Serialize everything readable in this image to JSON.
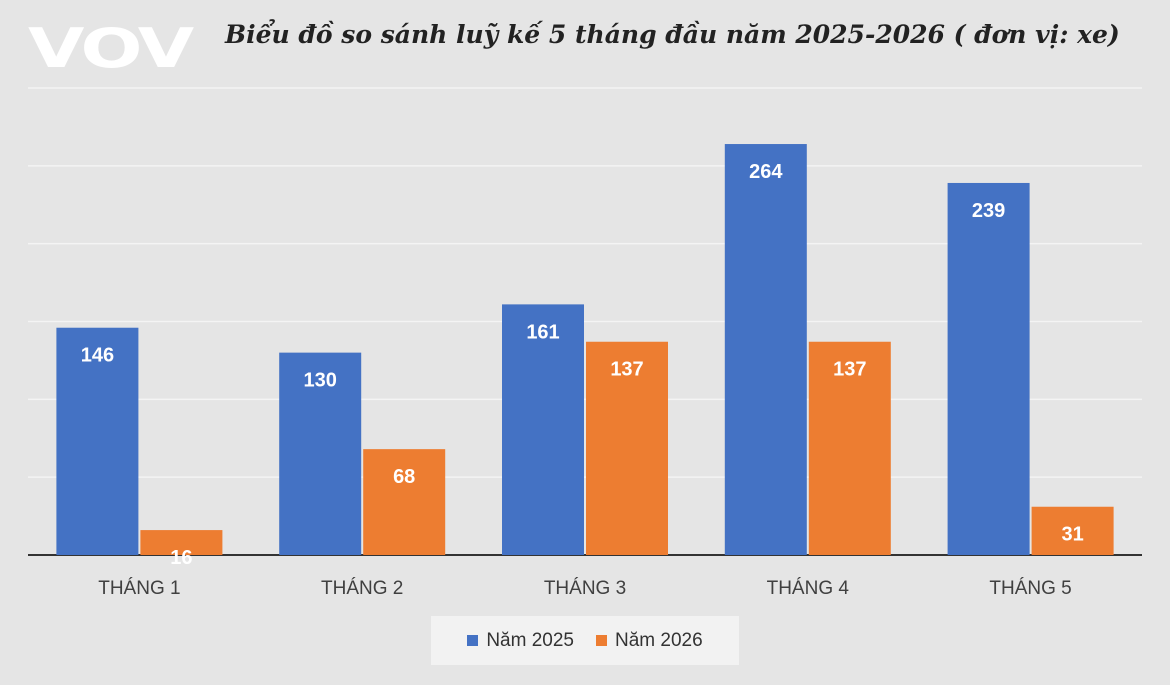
{
  "logo": {
    "text": "VOV"
  },
  "chart_data": {
    "type": "bar",
    "title": "Biểu đồ so sánh luỹ kế 5 tháng đầu năm 2025-2026 ( đơn vị: xe)",
    "categories": [
      "THÁNG 1",
      "THÁNG 2",
      "THÁNG 3",
      "THÁNG 4",
      "THÁNG 5"
    ],
    "series": [
      {
        "name": "Năm 2025",
        "color": "#4472c4",
        "values": [
          146,
          130,
          161,
          264,
          239
        ]
      },
      {
        "name": "Năm 2026",
        "color": "#ed7d31",
        "values": [
          16,
          68,
          137,
          137,
          31
        ]
      }
    ],
    "ylim": [
      0,
      300
    ],
    "grid": true,
    "legend_position": "bottom"
  }
}
